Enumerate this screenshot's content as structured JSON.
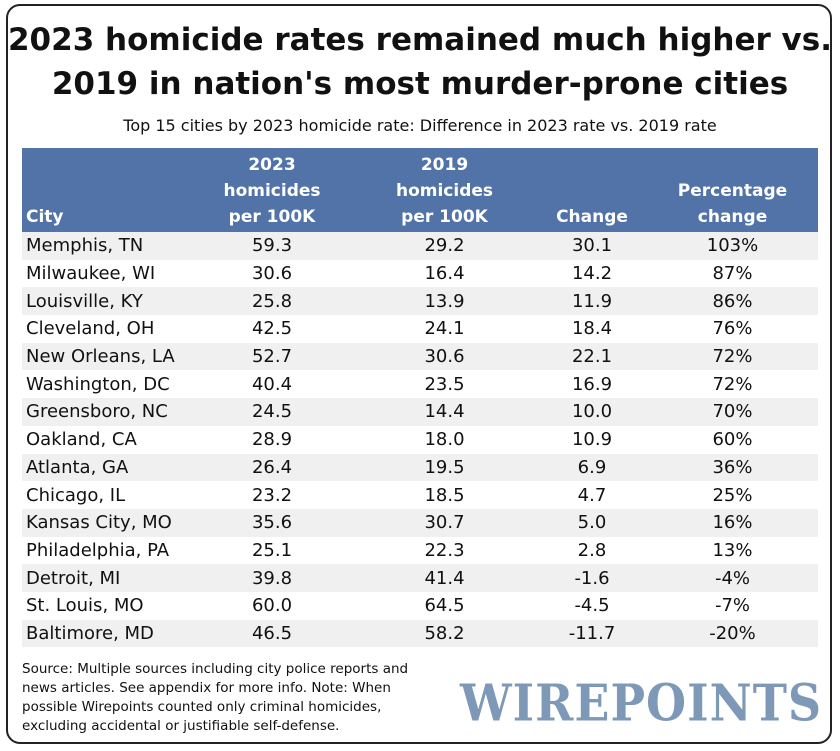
{
  "title_line1": "2023 homicide rates remained much higher vs.",
  "title_line2": "2019 in nation's most murder-prone cities",
  "subtitle": "Top 15 cities by 2023 homicide rate: Difference in 2023 rate vs. 2019 rate",
  "header_color": "#5273a8",
  "chart_data": {
    "type": "table",
    "columns": [
      {
        "lines": [
          "",
          "",
          "City"
        ]
      },
      {
        "lines": [
          "2023",
          "homicides",
          "per 100K"
        ]
      },
      {
        "lines": [
          "2019",
          "homicides",
          "per 100K"
        ]
      },
      {
        "lines": [
          "",
          "",
          "Change"
        ]
      },
      {
        "lines": [
          "",
          "Percentage",
          "change"
        ]
      }
    ],
    "rows": [
      [
        "Memphis, TN",
        "59.3",
        "29.2",
        "30.1",
        "103%"
      ],
      [
        "Milwaukee, WI",
        "30.6",
        "16.4",
        "14.2",
        "87%"
      ],
      [
        "Louisville, KY",
        "25.8",
        "13.9",
        "11.9",
        "86%"
      ],
      [
        "Cleveland, OH",
        "42.5",
        "24.1",
        "18.4",
        "76%"
      ],
      [
        "New Orleans, LA",
        "52.7",
        "30.6",
        "22.1",
        "72%"
      ],
      [
        "Washington, DC",
        "40.4",
        "23.5",
        "16.9",
        "72%"
      ],
      [
        "Greensboro, NC",
        "24.5",
        "14.4",
        "10.0",
        "70%"
      ],
      [
        "Oakland, CA",
        "28.9",
        "18.0",
        "10.9",
        "60%"
      ],
      [
        "Atlanta, GA",
        "26.4",
        "19.5",
        "6.9",
        "36%"
      ],
      [
        "Chicago, IL",
        "23.2",
        "18.5",
        "4.7",
        "25%"
      ],
      [
        "Kansas City, MO",
        "35.6",
        "30.7",
        "5.0",
        "16%"
      ],
      [
        "Philadelphia, PA",
        "25.1",
        "22.3",
        "2.8",
        "13%"
      ],
      [
        "Detroit, MI",
        "39.8",
        "41.4",
        "-1.6",
        "-4%"
      ],
      [
        "St. Louis, MO",
        "60.0",
        "64.5",
        "-4.5",
        "-7%"
      ],
      [
        "Baltimore, MD",
        "46.5",
        "58.2",
        "-11.7",
        "-20%"
      ]
    ]
  },
  "source": "Source: Multiple sources including city police reports and news articles. See appendix for more info.  Note: When possible Wirepoints counted only criminal homicides, excluding accidental or justifiable self-defense.",
  "logo": "WIREPOINTS"
}
